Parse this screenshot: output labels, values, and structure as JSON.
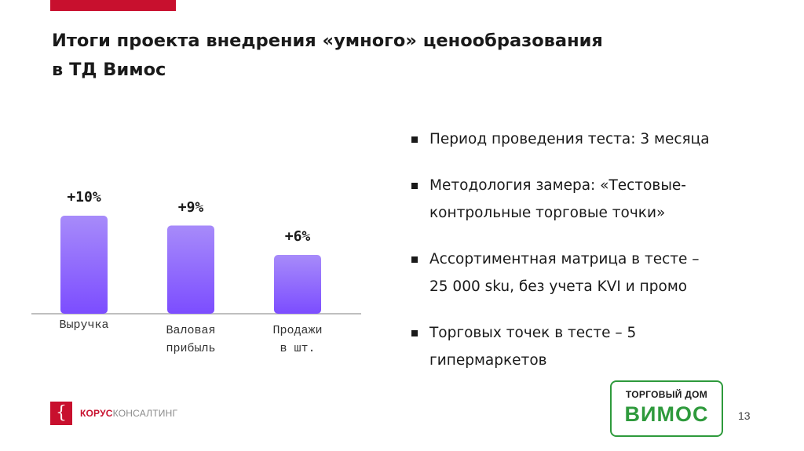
{
  "header": {
    "title_line1": "Итоги проекта внедрения «умного» ценообразования",
    "title_line2": "в ТД Вимос"
  },
  "chart_data": {
    "type": "bar",
    "categories": [
      "Выручка",
      "Валовая прибыль",
      "Продажи в шт."
    ],
    "category_lines": [
      [
        "Выручка"
      ],
      [
        "Валовая",
        "прибыль"
      ],
      [
        "Продажи",
        "в шт."
      ]
    ],
    "values": [
      10,
      9,
      6
    ],
    "data_labels": [
      "+10%",
      "+9%",
      "+6%"
    ],
    "title": "",
    "xlabel": "",
    "ylabel": "",
    "ylim": [
      0,
      12
    ],
    "grid": false,
    "colors": {
      "bar_top": "#a78bfa",
      "bar_bottom": "#7c4dff",
      "axis": "#bfbfbf"
    }
  },
  "bullets": [
    {
      "lines": [
        "Период проведения теста: 3 месяца"
      ]
    },
    {
      "lines": [
        "Методология замера: «Тестовые-",
        "контрольные торговые точки»"
      ]
    },
    {
      "lines": [
        "Ассортиментная матрица в тесте –",
        "25 000 sku, без учета KVI и промо"
      ]
    },
    {
      "lines": [
        "Торговых точек в тесте – 5",
        "гипермаркетов"
      ]
    }
  ],
  "footer": {
    "logo_mark": "{",
    "logo_part1": "КОРУС",
    "logo_part2": "КОНСАЛТИНГ",
    "partner_top": "ТОРГОВЫЙ ДОМ",
    "partner_name": "ВИМОС",
    "page_number": "13"
  },
  "colors": {
    "accent": "#c8102e",
    "partner_green": "#2e9a3c"
  }
}
